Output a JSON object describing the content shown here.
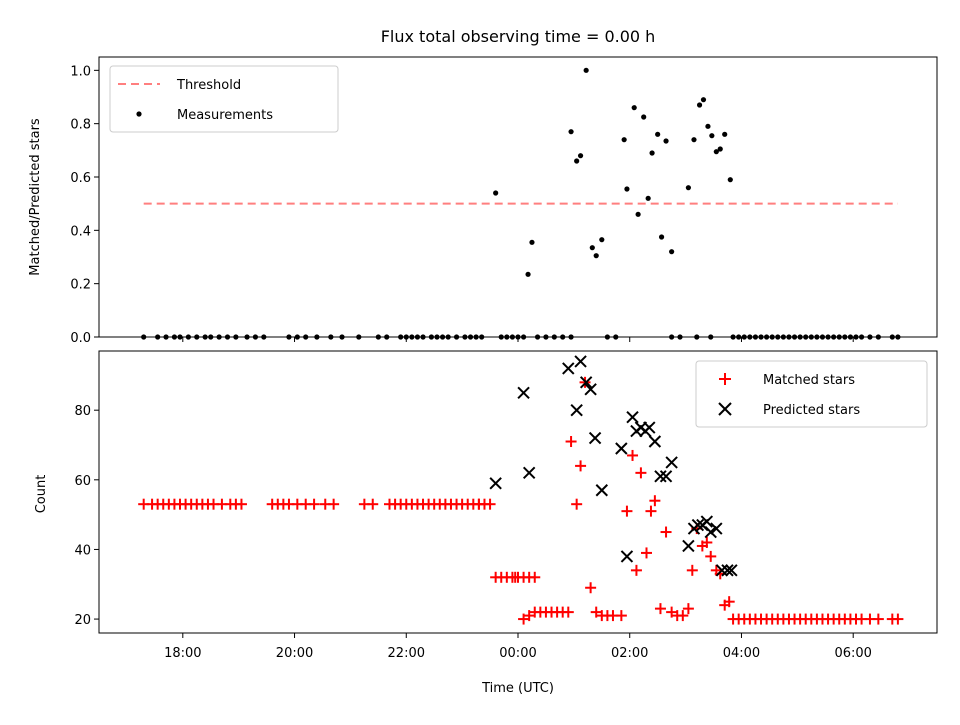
{
  "chart_data": [
    {
      "type": "scatter",
      "title": "Flux total observing time = 0.00 h",
      "ylabel": "Matched/Predicted stars",
      "xlabel": "",
      "x_unit": "hours since 00:00 UTC (negative = previous evening)",
      "xlim": [
        -7.5,
        7.5
      ],
      "ylim": [
        0.0,
        1.05
      ],
      "y_ticks": [
        "0.0",
        "0.2",
        "0.4",
        "0.6",
        "0.8",
        "1.0"
      ],
      "legend_position": "top-left",
      "threshold": {
        "name": "Threshold",
        "value": 0.5,
        "x_range": [
          -6.7,
          6.8
        ],
        "color": "#ff7f7f"
      },
      "series": [
        {
          "name": "Measurements",
          "color": "#000000",
          "points": [
            [
              -6.7,
              0
            ],
            [
              -6.45,
              0
            ],
            [
              -6.3,
              0
            ],
            [
              -6.15,
              0
            ],
            [
              -6.05,
              0
            ],
            [
              -5.9,
              0
            ],
            [
              -5.75,
              0
            ],
            [
              -5.6,
              0
            ],
            [
              -5.5,
              0
            ],
            [
              -5.35,
              0
            ],
            [
              -5.2,
              0
            ],
            [
              -5.05,
              0
            ],
            [
              -4.85,
              0
            ],
            [
              -4.7,
              0
            ],
            [
              -4.55,
              0
            ],
            [
              -4.1,
              0
            ],
            [
              -3.95,
              0
            ],
            [
              -3.8,
              0
            ],
            [
              -3.6,
              0
            ],
            [
              -3.35,
              0
            ],
            [
              -3.15,
              0
            ],
            [
              -2.85,
              0
            ],
            [
              -2.5,
              0
            ],
            [
              -2.35,
              0
            ],
            [
              -2.1,
              0
            ],
            [
              -2.0,
              0
            ],
            [
              -1.9,
              0
            ],
            [
              -1.8,
              0
            ],
            [
              -1.7,
              0
            ],
            [
              -1.55,
              0
            ],
            [
              -1.45,
              0
            ],
            [
              -1.35,
              0
            ],
            [
              -1.25,
              0
            ],
            [
              -1.1,
              0
            ],
            [
              -0.95,
              0
            ],
            [
              -0.85,
              0
            ],
            [
              -0.75,
              0
            ],
            [
              -0.65,
              0
            ],
            [
              -0.4,
              0.54
            ],
            [
              -0.3,
              0
            ],
            [
              -0.2,
              0
            ],
            [
              -0.1,
              0
            ],
            [
              0.0,
              0
            ],
            [
              0.1,
              0
            ],
            [
              0.35,
              0
            ],
            [
              0.5,
              0
            ],
            [
              0.65,
              0
            ],
            [
              0.8,
              0
            ],
            [
              0.95,
              0
            ],
            [
              1.6,
              0
            ],
            [
              1.75,
              0
            ],
            [
              2.75,
              0
            ],
            [
              2.9,
              0
            ],
            [
              3.2,
              0
            ],
            [
              3.45,
              0
            ],
            [
              0.18,
              0.235
            ],
            [
              0.25,
              0.355
            ],
            [
              0.95,
              0.77
            ],
            [
              1.05,
              0.66
            ],
            [
              1.12,
              0.68
            ],
            [
              1.22,
              1.0
            ],
            [
              1.33,
              0.335
            ],
            [
              1.4,
              0.305
            ],
            [
              1.5,
              0.365
            ],
            [
              1.9,
              0.74
            ],
            [
              1.95,
              0.555
            ],
            [
              2.08,
              0.86
            ],
            [
              2.15,
              0.46
            ],
            [
              2.25,
              0.825
            ],
            [
              2.33,
              0.52
            ],
            [
              2.4,
              0.69
            ],
            [
              2.5,
              0.76
            ],
            [
              2.57,
              0.375
            ],
            [
              2.65,
              0.735
            ],
            [
              2.75,
              0.32
            ],
            [
              3.05,
              0.56
            ],
            [
              3.15,
              0.74
            ],
            [
              3.25,
              0.87
            ],
            [
              3.32,
              0.89
            ],
            [
              3.4,
              0.79
            ],
            [
              3.47,
              0.755
            ],
            [
              3.55,
              0.695
            ],
            [
              3.62,
              0.705
            ],
            [
              3.7,
              0.76
            ],
            [
              3.8,
              0.59
            ],
            [
              3.85,
              0
            ],
            [
              3.95,
              0
            ],
            [
              4.05,
              0
            ],
            [
              4.15,
              0
            ],
            [
              4.25,
              0
            ],
            [
              4.35,
              0
            ],
            [
              4.45,
              0
            ],
            [
              4.55,
              0
            ],
            [
              4.65,
              0
            ],
            [
              4.75,
              0
            ],
            [
              4.85,
              0
            ],
            [
              4.95,
              0
            ],
            [
              5.05,
              0
            ],
            [
              5.15,
              0
            ],
            [
              5.25,
              0
            ],
            [
              5.35,
              0
            ],
            [
              5.45,
              0
            ],
            [
              5.55,
              0
            ],
            [
              5.65,
              0
            ],
            [
              5.75,
              0
            ],
            [
              5.85,
              0
            ],
            [
              5.95,
              0
            ],
            [
              6.05,
              0
            ],
            [
              6.15,
              0
            ],
            [
              6.3,
              0
            ],
            [
              6.45,
              0
            ],
            [
              6.7,
              0
            ],
            [
              6.8,
              0
            ]
          ]
        }
      ]
    },
    {
      "type": "scatter",
      "title": "",
      "ylabel": "Count",
      "xlabel": "Time (UTC)",
      "x_unit": "hours since 00:00 UTC (negative = previous evening)",
      "xlim": [
        -7.5,
        7.5
      ],
      "ylim": [
        16,
        97
      ],
      "x_ticks": [
        {
          "value": -6,
          "label": "18:00"
        },
        {
          "value": -4,
          "label": "20:00"
        },
        {
          "value": -2,
          "label": "22:00"
        },
        {
          "value": 0,
          "label": "00:00"
        },
        {
          "value": 2,
          "label": "02:00"
        },
        {
          "value": 4,
          "label": "04:00"
        },
        {
          "value": 6,
          "label": "06:00"
        }
      ],
      "y_ticks": [
        "20",
        "40",
        "60",
        "80"
      ],
      "legend_position": "top-right",
      "series": [
        {
          "name": "Matched stars",
          "color": "#ff0000",
          "marker": "plus",
          "points": [
            [
              -6.7,
              53
            ],
            [
              -6.55,
              53
            ],
            [
              -6.45,
              53
            ],
            [
              -6.35,
              53
            ],
            [
              -6.25,
              53
            ],
            [
              -6.15,
              53
            ],
            [
              -6.05,
              53
            ],
            [
              -5.95,
              53
            ],
            [
              -5.85,
              53
            ],
            [
              -5.75,
              53
            ],
            [
              -5.65,
              53
            ],
            [
              -5.55,
              53
            ],
            [
              -5.45,
              53
            ],
            [
              -5.3,
              53
            ],
            [
              -5.15,
              53
            ],
            [
              -5.05,
              53
            ],
            [
              -4.95,
              53
            ],
            [
              -4.4,
              53
            ],
            [
              -4.3,
              53
            ],
            [
              -4.2,
              53
            ],
            [
              -4.1,
              53
            ],
            [
              -3.95,
              53
            ],
            [
              -3.8,
              53
            ],
            [
              -3.65,
              53
            ],
            [
              -3.45,
              53
            ],
            [
              -3.3,
              53
            ],
            [
              -2.75,
              53
            ],
            [
              -2.6,
              53
            ],
            [
              -2.3,
              53
            ],
            [
              -2.2,
              53
            ],
            [
              -2.1,
              53
            ],
            [
              -2.0,
              53
            ],
            [
              -1.9,
              53
            ],
            [
              -1.8,
              53
            ],
            [
              -1.7,
              53
            ],
            [
              -1.6,
              53
            ],
            [
              -1.5,
              53
            ],
            [
              -1.4,
              53
            ],
            [
              -1.3,
              53
            ],
            [
              -1.2,
              53
            ],
            [
              -1.1,
              53
            ],
            [
              -1.0,
              53
            ],
            [
              -0.9,
              53
            ],
            [
              -0.8,
              53
            ],
            [
              -0.7,
              53
            ],
            [
              -0.6,
              53
            ],
            [
              -0.5,
              53
            ],
            [
              -0.7,
              53
            ],
            [
              -0.4,
              32
            ],
            [
              -0.3,
              32
            ],
            [
              -0.2,
              32
            ],
            [
              -0.1,
              32
            ],
            [
              0.0,
              32
            ],
            [
              0.1,
              32
            ],
            [
              0.2,
              32
            ],
            [
              0.3,
              32
            ],
            [
              -0.05,
              32
            ],
            [
              0.1,
              20
            ],
            [
              0.2,
              21
            ],
            [
              0.3,
              22
            ],
            [
              0.4,
              22
            ],
            [
              0.5,
              22
            ],
            [
              0.6,
              22
            ],
            [
              0.7,
              22
            ],
            [
              0.8,
              22
            ],
            [
              0.9,
              22
            ],
            [
              0.95,
              71
            ],
            [
              1.05,
              53
            ],
            [
              1.12,
              64
            ],
            [
              1.2,
              88
            ],
            [
              1.3,
              29
            ],
            [
              1.4,
              22
            ],
            [
              1.5,
              21
            ],
            [
              1.6,
              21
            ],
            [
              1.7,
              21
            ],
            [
              1.85,
              21
            ],
            [
              1.95,
              51
            ],
            [
              2.05,
              67
            ],
            [
              2.12,
              34
            ],
            [
              2.2,
              62
            ],
            [
              2.3,
              39
            ],
            [
              2.38,
              51
            ],
            [
              2.45,
              54
            ],
            [
              2.55,
              23
            ],
            [
              2.65,
              45
            ],
            [
              2.75,
              22
            ],
            [
              2.85,
              21
            ],
            [
              2.95,
              21
            ],
            [
              3.05,
              23
            ],
            [
              3.12,
              34
            ],
            [
              3.2,
              46
            ],
            [
              3.3,
              41
            ],
            [
              3.38,
              42
            ],
            [
              3.45,
              38
            ],
            [
              3.55,
              34
            ],
            [
              3.62,
              33
            ],
            [
              3.7,
              24
            ],
            [
              3.78,
              25
            ],
            [
              3.85,
              20
            ],
            [
              3.95,
              20
            ],
            [
              4.05,
              20
            ],
            [
              4.15,
              20
            ],
            [
              4.25,
              20
            ],
            [
              4.35,
              20
            ],
            [
              4.45,
              20
            ],
            [
              4.55,
              20
            ],
            [
              4.65,
              20
            ],
            [
              4.75,
              20
            ],
            [
              4.85,
              20
            ],
            [
              4.95,
              20
            ],
            [
              5.05,
              20
            ],
            [
              5.15,
              20
            ],
            [
              5.25,
              20
            ],
            [
              5.35,
              20
            ],
            [
              5.45,
              20
            ],
            [
              5.55,
              20
            ],
            [
              5.65,
              20
            ],
            [
              5.75,
              20
            ],
            [
              5.85,
              20
            ],
            [
              5.95,
              20
            ],
            [
              6.05,
              20
            ],
            [
              6.15,
              20
            ],
            [
              6.3,
              20
            ],
            [
              6.45,
              20
            ],
            [
              6.7,
              20
            ],
            [
              6.8,
              20
            ]
          ]
        },
        {
          "name": "Predicted stars",
          "color": "#000000",
          "marker": "x",
          "points": [
            [
              -0.4,
              59
            ],
            [
              0.1,
              85
            ],
            [
              0.2,
              62
            ],
            [
              0.9,
              92
            ],
            [
              1.05,
              80
            ],
            [
              1.12,
              94
            ],
            [
              1.22,
              88
            ],
            [
              1.3,
              86
            ],
            [
              1.38,
              72
            ],
            [
              1.5,
              57
            ],
            [
              1.85,
              69
            ],
            [
              1.95,
              38
            ],
            [
              2.05,
              78
            ],
            [
              2.12,
              74
            ],
            [
              2.2,
              75
            ],
            [
              2.28,
              74
            ],
            [
              2.35,
              75
            ],
            [
              2.45,
              71
            ],
            [
              2.55,
              61
            ],
            [
              2.65,
              61
            ],
            [
              2.75,
              65
            ],
            [
              3.05,
              41
            ],
            [
              3.15,
              46
            ],
            [
              3.22,
              47
            ],
            [
              3.3,
              47
            ],
            [
              3.38,
              48
            ],
            [
              3.45,
              45
            ],
            [
              3.55,
              46
            ],
            [
              3.65,
              34
            ],
            [
              3.75,
              34
            ],
            [
              3.82,
              34
            ]
          ]
        }
      ]
    }
  ]
}
